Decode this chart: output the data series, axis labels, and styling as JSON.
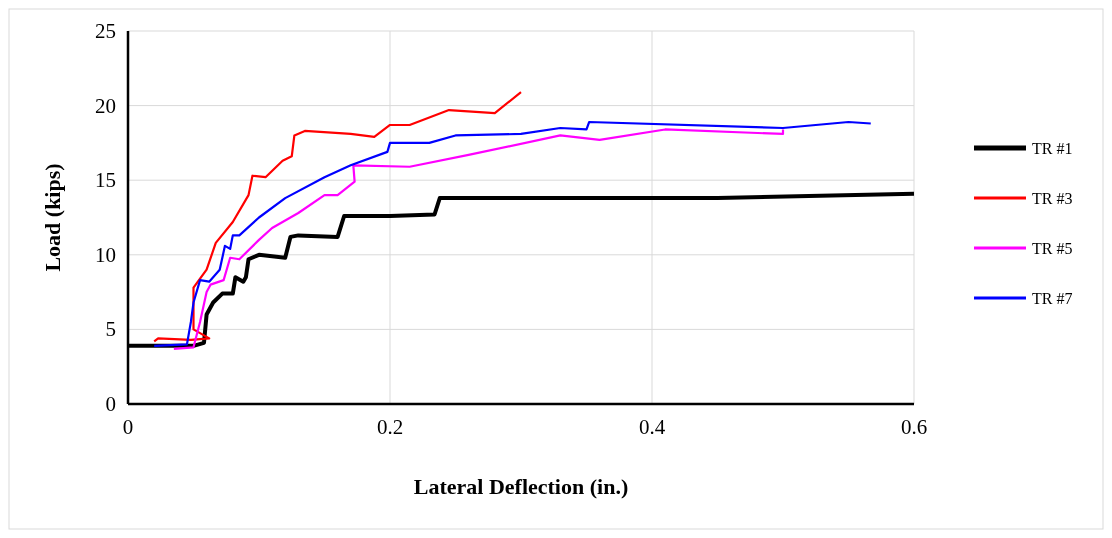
{
  "chart_data": {
    "type": "line",
    "xlabel": "Lateral Deflection (in.)",
    "ylabel": "Load (kips)",
    "xlim": [
      0,
      0.6
    ],
    "ylim": [
      0,
      25
    ],
    "xticks": [
      0,
      0.2,
      0.4,
      0.6
    ],
    "yticks": [
      0,
      5,
      10,
      15,
      20,
      25
    ],
    "grid": true,
    "legend": "right",
    "marker": "none",
    "line_style": "solid",
    "series": [
      {
        "name": "TR #1",
        "color": "#000000",
        "x": [
          0,
          0.05,
          0.058,
          0.06,
          0.065,
          0.072,
          0.08,
          0.082,
          0.088,
          0.09,
          0.092,
          0.1,
          0.12,
          0.124,
          0.13,
          0.16,
          0.165,
          0.2,
          0.234,
          0.238,
          0.3,
          0.45,
          0.6
        ],
        "values": [
          3.9,
          3.9,
          4.1,
          6,
          6.8,
          7.4,
          7.4,
          8.5,
          8.2,
          8.5,
          9.7,
          10,
          9.8,
          11.2,
          11.3,
          11.2,
          12.6,
          12.6,
          12.7,
          13.8,
          13.8,
          13.8,
          14.1
        ]
      },
      {
        "name": "TR #3",
        "color": "#ff0000",
        "x": [
          0.02,
          0.023,
          0.048,
          0.062,
          0.06,
          0.05,
          0.05,
          0.06,
          0.067,
          0.08,
          0.092,
          0.095,
          0.105,
          0.118,
          0.125,
          0.127,
          0.135,
          0.17,
          0.188,
          0.2,
          0.215,
          0.245,
          0.28,
          0.3
        ],
        "values": [
          4.2,
          4.4,
          4.3,
          4.4,
          4.5,
          5,
          7.8,
          9,
          10.8,
          12.2,
          14,
          15.3,
          15.2,
          16.3,
          16.6,
          18,
          18.3,
          18.1,
          17.9,
          18.7,
          18.7,
          19.7,
          19.5,
          20.9
        ]
      },
      {
        "name": "TR #5",
        "color": "#ff00ff",
        "x": [
          0.035,
          0.05,
          0.055,
          0.06,
          0.063,
          0.073,
          0.078,
          0.085,
          0.1,
          0.11,
          0.13,
          0.15,
          0.16,
          0.173,
          0.172,
          0.215,
          0.26,
          0.33,
          0.36,
          0.41,
          0.5,
          0.5
        ],
        "values": [
          3.7,
          3.8,
          5.5,
          7.5,
          8,
          8.3,
          9.8,
          9.7,
          11,
          11.8,
          12.8,
          14,
          14,
          14.9,
          16,
          15.9,
          16.7,
          18,
          17.7,
          18.4,
          18.1,
          18.4
        ]
      },
      {
        "name": "TR #7",
        "color": "#0000ff",
        "x": [
          0.02,
          0.045,
          0.048,
          0.05,
          0.055,
          0.062,
          0.07,
          0.074,
          0.078,
          0.08,
          0.085,
          0.1,
          0.12,
          0.15,
          0.17,
          0.198,
          0.2,
          0.23,
          0.25,
          0.3,
          0.33,
          0.35,
          0.352,
          0.5,
          0.55,
          0.567
        ],
        "values": [
          3.9,
          4,
          5.5,
          6.8,
          8.3,
          8.2,
          9,
          10.6,
          10.4,
          11.3,
          11.3,
          12.5,
          13.8,
          15.2,
          16,
          16.9,
          17.5,
          17.5,
          18,
          18.1,
          18.5,
          18.4,
          18.9,
          18.5,
          18.9,
          18.8
        ]
      }
    ]
  }
}
